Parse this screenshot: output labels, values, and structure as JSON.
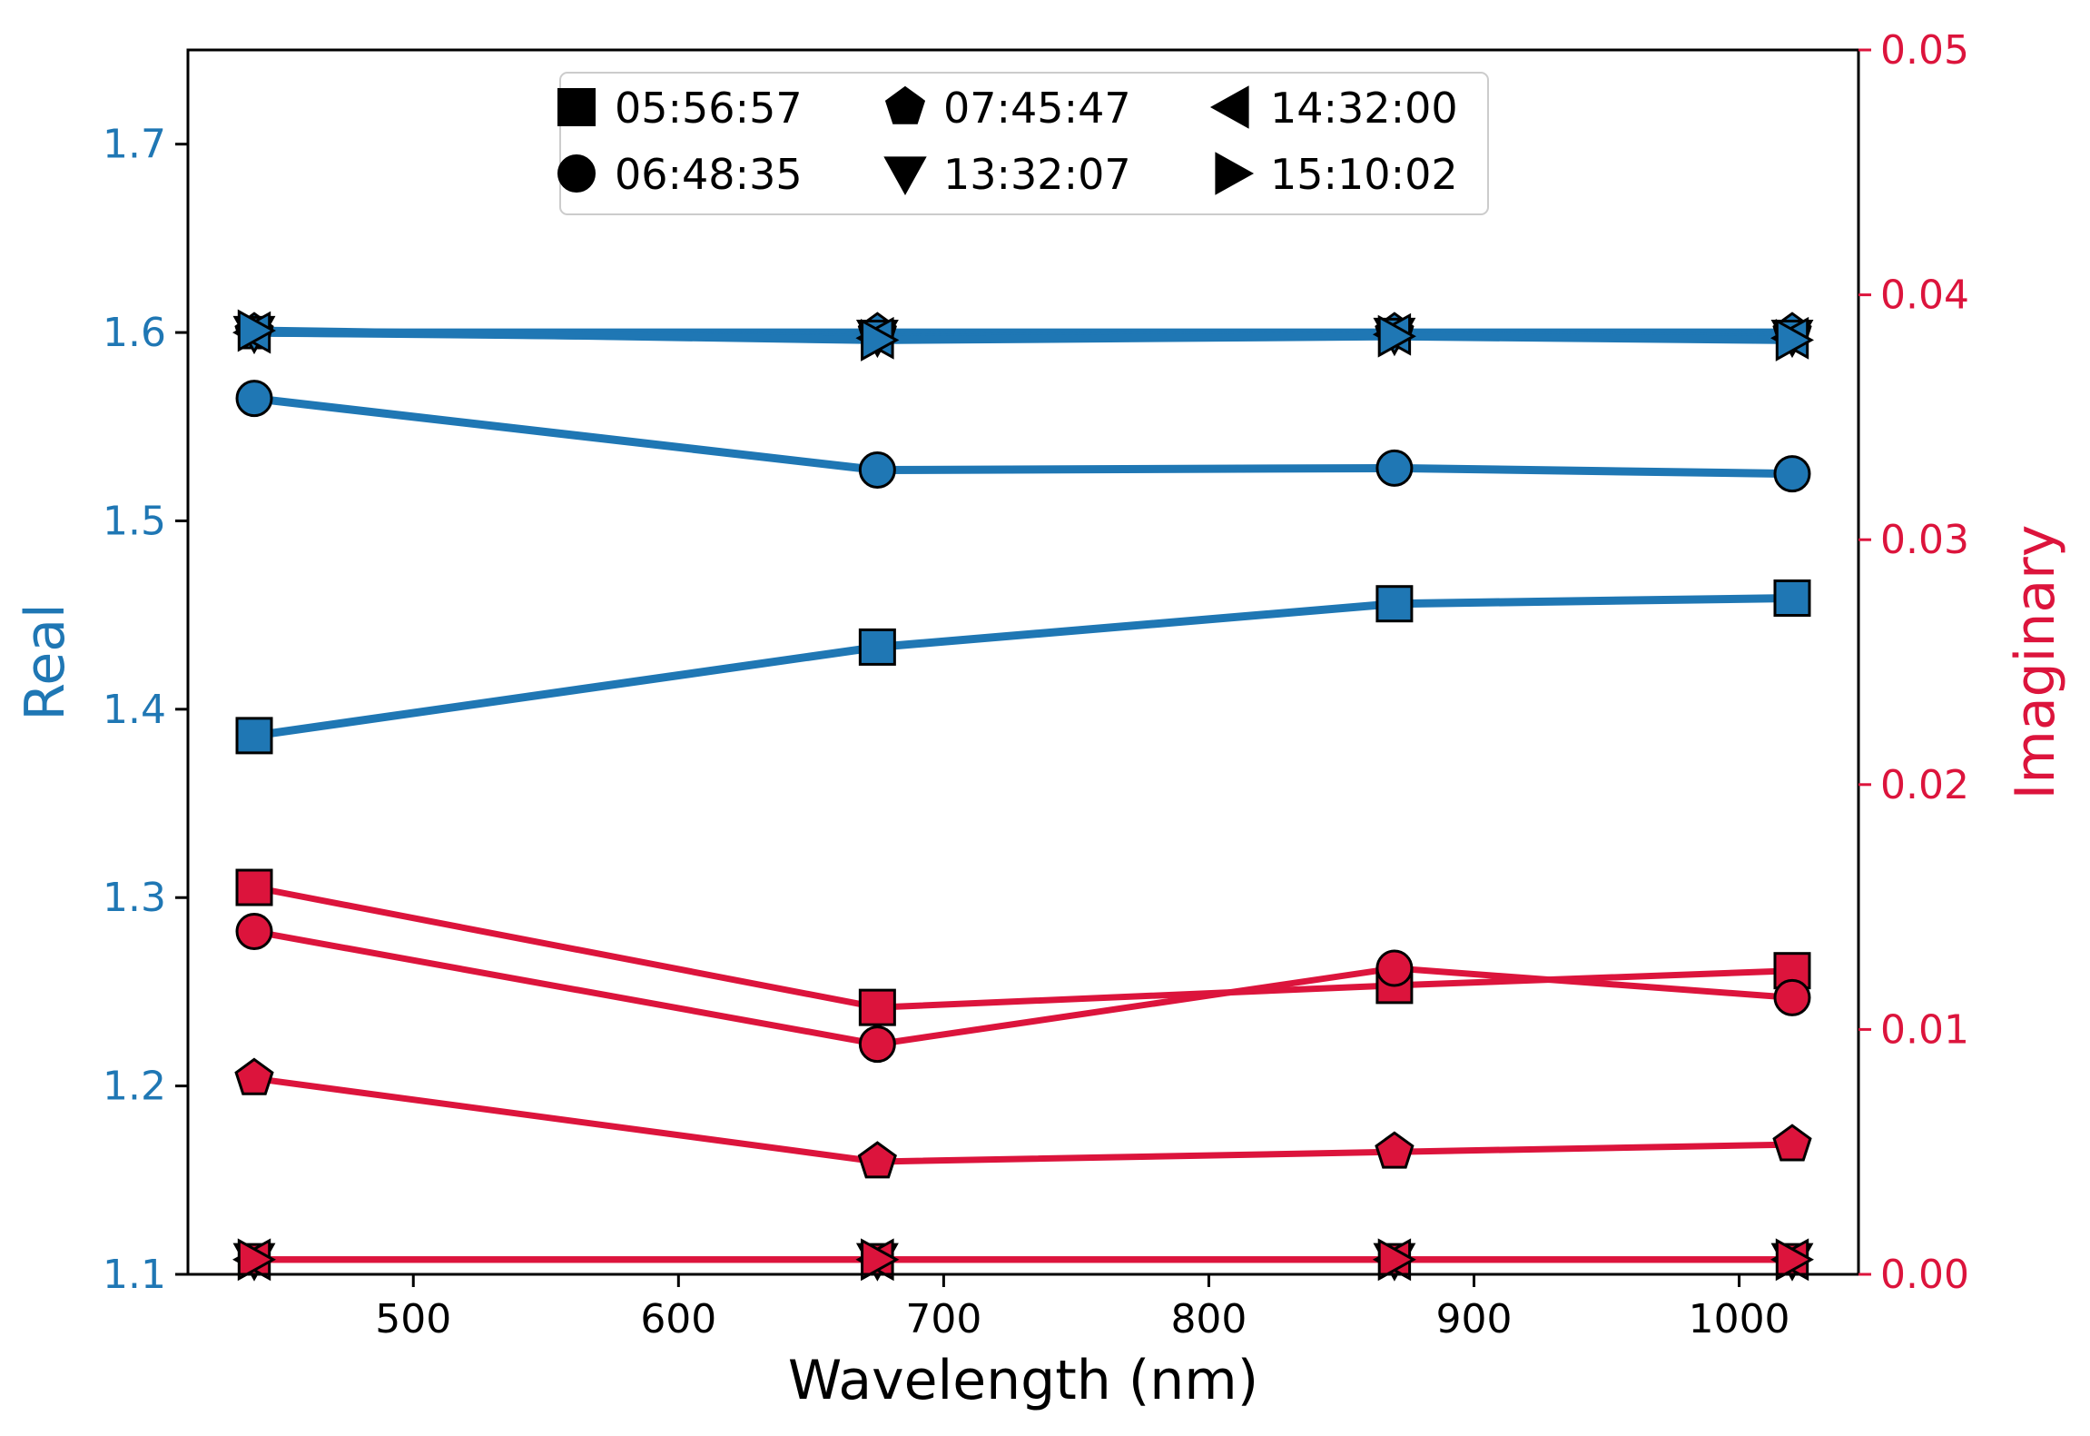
{
  "chart_data": {
    "type": "line",
    "title": "",
    "xlabel": "Wavelength (nm)",
    "ylabel_left": "Real",
    "ylabel_right": "Imaginary",
    "x": [
      440,
      675,
      870,
      1020
    ],
    "xlim": [
      415,
      1045
    ],
    "ylim_left": [
      1.1,
      1.75
    ],
    "ylim_right": [
      0.0,
      0.05
    ],
    "x_ticks": [
      "500",
      "600",
      "700",
      "800",
      "900",
      "1000"
    ],
    "left_ticks": [
      "1.1",
      "1.2",
      "1.3",
      "1.4",
      "1.5",
      "1.6",
      "1.7"
    ],
    "right_ticks": [
      "0.00",
      "0.01",
      "0.02",
      "0.03",
      "0.04",
      "0.05"
    ],
    "colors": {
      "real": "#1f77b4",
      "imag": "#dc143c",
      "axis": "#000000"
    },
    "legend": {
      "placement": "top-center",
      "entries": [
        {
          "label": "05:56:57",
          "marker": "square"
        },
        {
          "label": "06:48:35",
          "marker": "circle"
        },
        {
          "label": "07:45:47",
          "marker": "pentagon"
        },
        {
          "label": "13:32:07",
          "marker": "triangle-down"
        },
        {
          "label": "14:32:00",
          "marker": "triangle-left"
        },
        {
          "label": "15:10:02",
          "marker": "triangle-right"
        }
      ]
    },
    "real_series": [
      {
        "name": "05:56:57",
        "marker": "square",
        "values": [
          1.386,
          1.433,
          1.456,
          1.459
        ]
      },
      {
        "name": "06:48:35",
        "marker": "circle",
        "values": [
          1.565,
          1.527,
          1.528,
          1.525
        ]
      },
      {
        "name": "07:45:47",
        "marker": "pentagon",
        "values": [
          1.6,
          1.6,
          1.6,
          1.6
        ]
      },
      {
        "name": "13:32:07",
        "marker": "triangle-down",
        "values": [
          1.6,
          1.598,
          1.599,
          1.598
        ]
      },
      {
        "name": "14:32:00",
        "marker": "triangle-left",
        "values": [
          1.6,
          1.597,
          1.599,
          1.597
        ]
      },
      {
        "name": "15:10:02",
        "marker": "triangle-right",
        "values": [
          1.601,
          1.596,
          1.598,
          1.596
        ]
      }
    ],
    "imag_series": [
      {
        "name": "05:56:57",
        "marker": "square",
        "values": [
          0.0158,
          0.0109,
          0.0118,
          0.0124
        ]
      },
      {
        "name": "06:48:35",
        "marker": "circle",
        "values": [
          0.014,
          0.0094,
          0.0125,
          0.0113
        ]
      },
      {
        "name": "07:45:47",
        "marker": "pentagon",
        "values": [
          0.008,
          0.0046,
          0.005,
          0.0053
        ]
      },
      {
        "name": "13:32:07",
        "marker": "triangle-down",
        "values": [
          0.0006,
          0.0006,
          0.0006,
          0.0006
        ]
      },
      {
        "name": "14:32:00",
        "marker": "triangle-left",
        "values": [
          0.0006,
          0.0006,
          0.0006,
          0.0006
        ]
      },
      {
        "name": "15:10:02",
        "marker": "triangle-right",
        "values": [
          0.0006,
          0.0006,
          0.0006,
          0.0006
        ]
      }
    ]
  }
}
